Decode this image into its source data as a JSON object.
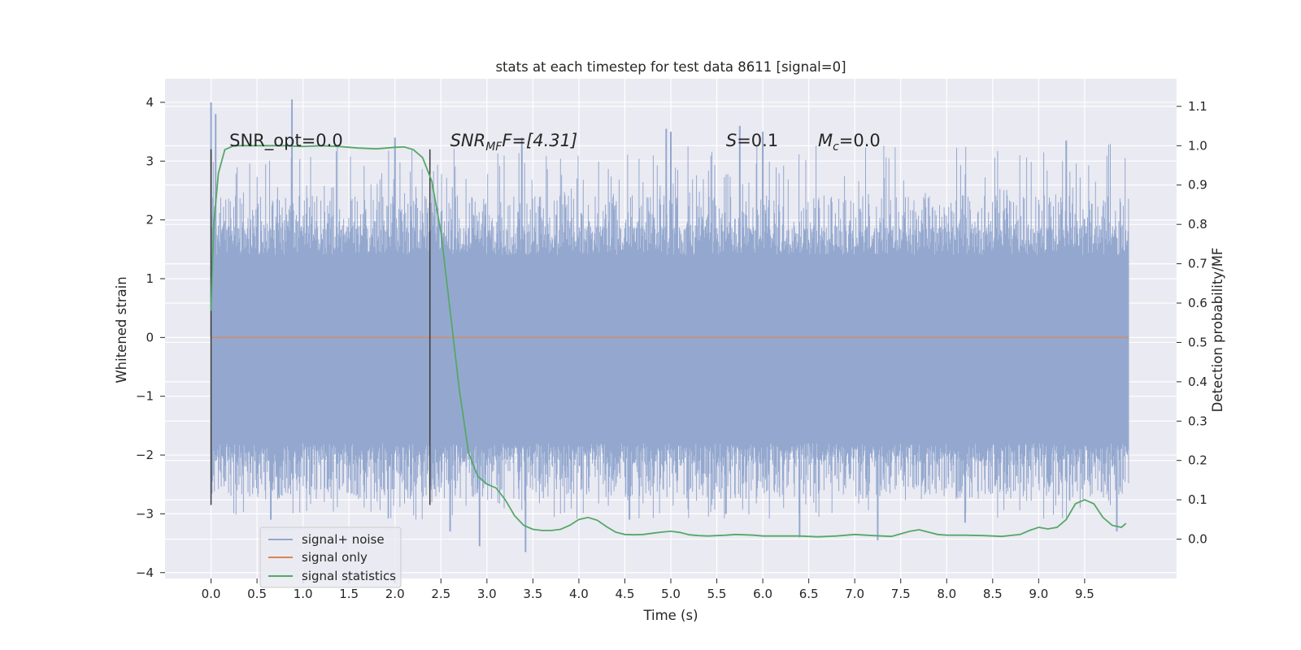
{
  "chart_data": {
    "type": "line",
    "title": "stats at each timestep for test data 8611 [signal=0]",
    "xlabel": "Time (s)",
    "ylabel_left": "Whitened strain",
    "ylabel_right": "Detection probability/MF",
    "xlim": [
      -0.5,
      10.5
    ],
    "ylim_left": [
      -4.1,
      4.4
    ],
    "ylim_right": [
      -0.1,
      1.17
    ],
    "x_ticks": [
      "0.0",
      "0.5",
      "1.0",
      "1.5",
      "2.0",
      "2.5",
      "3.0",
      "3.5",
      "4.0",
      "4.5",
      "5.0",
      "5.5",
      "6.0",
      "6.5",
      "7.0",
      "7.5",
      "8.0",
      "8.5",
      "9.0",
      "9.5"
    ],
    "y_left_ticks": [
      "−4",
      "−3",
      "−2",
      "−1",
      "0",
      "1",
      "2",
      "3",
      "4"
    ],
    "y_right_ticks": [
      "0.0",
      "0.1",
      "0.2",
      "0.3",
      "0.4",
      "0.5",
      "0.6",
      "0.7",
      "0.8",
      "0.9",
      "1.0",
      "1.1"
    ],
    "grid": true,
    "legend_position": "lower-left",
    "colors": {
      "background": "#eaeaf2",
      "grid": "#ffffff",
      "signal_noise": "#94a8cf",
      "signal_only": "#dd8452",
      "signal_statistics": "#55a868",
      "marker_lines": "#3a3a3a"
    },
    "series": [
      {
        "name": "signal+ noise",
        "axis": "left",
        "x_range": [
          0.0,
          9.98
        ],
        "core_band": [
          -1.8,
          1.4
        ],
        "typical_band": [
          -2.4,
          2.0
        ],
        "peaks": [
          {
            "x": 0.0,
            "y": 4.0
          },
          {
            "x": 0.05,
            "y": 3.8
          },
          {
            "x": 0.88,
            "y": 4.05
          },
          {
            "x": 2.0,
            "y": 3.4
          },
          {
            "x": 3.38,
            "y": 3.4
          },
          {
            "x": 4.95,
            "y": 3.55
          },
          {
            "x": 5.0,
            "y": 3.5
          },
          {
            "x": 5.75,
            "y": 3.6
          },
          {
            "x": 6.0,
            "y": 3.5
          },
          {
            "x": 9.3,
            "y": 3.35
          },
          {
            "x": 3.42,
            "y": -3.65
          },
          {
            "x": 2.92,
            "y": -3.55
          },
          {
            "x": 6.4,
            "y": -3.4
          },
          {
            "x": 7.25,
            "y": -3.45
          },
          {
            "x": 9.85,
            "y": -3.3
          },
          {
            "x": 0.65,
            "y": -3.1
          },
          {
            "x": 4.55,
            "y": -3.1
          },
          {
            "x": 8.2,
            "y": -3.15
          },
          {
            "x": 5.6,
            "y": -3.0
          },
          {
            "x": 2.6,
            "y": -3.3
          }
        ]
      },
      {
        "name": "signal only",
        "axis": "left",
        "x": [
          0.0,
          9.98
        ],
        "y": [
          0.0,
          0.0
        ]
      },
      {
        "name": "signal statistics",
        "axis": "right",
        "x": [
          0.0,
          0.03,
          0.08,
          0.15,
          0.25,
          0.4,
          0.6,
          0.8,
          1.0,
          1.2,
          1.4,
          1.6,
          1.8,
          2.0,
          2.1,
          2.2,
          2.3,
          2.4,
          2.5,
          2.6,
          2.7,
          2.8,
          2.9,
          3.0,
          3.1,
          3.2,
          3.3,
          3.4,
          3.5,
          3.6,
          3.7,
          3.8,
          3.9,
          4.0,
          4.1,
          4.2,
          4.3,
          4.4,
          4.5,
          4.6,
          4.7,
          4.8,
          4.9,
          5.0,
          5.1,
          5.2,
          5.3,
          5.4,
          5.5,
          5.6,
          5.7,
          5.8,
          5.9,
          6.0,
          6.2,
          6.4,
          6.6,
          6.8,
          7.0,
          7.2,
          7.4,
          7.6,
          7.7,
          7.8,
          7.9,
          8.0,
          8.2,
          8.4,
          8.6,
          8.8,
          8.9,
          9.0,
          9.1,
          9.2,
          9.3,
          9.4,
          9.5,
          9.6,
          9.7,
          9.8,
          9.9,
          9.95
        ],
        "y": [
          0.58,
          0.8,
          0.93,
          0.99,
          1.0,
          1.0,
          1.0,
          1.0,
          0.998,
          1.0,
          0.998,
          0.994,
          0.992,
          0.996,
          0.997,
          0.99,
          0.97,
          0.91,
          0.78,
          0.58,
          0.38,
          0.22,
          0.16,
          0.14,
          0.13,
          0.1,
          0.06,
          0.035,
          0.025,
          0.022,
          0.022,
          0.025,
          0.035,
          0.05,
          0.055,
          0.048,
          0.032,
          0.018,
          0.012,
          0.011,
          0.012,
          0.015,
          0.018,
          0.02,
          0.017,
          0.011,
          0.009,
          0.008,
          0.009,
          0.01,
          0.012,
          0.011,
          0.01,
          0.008,
          0.008,
          0.008,
          0.006,
          0.008,
          0.012,
          0.009,
          0.007,
          0.02,
          0.024,
          0.018,
          0.012,
          0.01,
          0.01,
          0.009,
          0.007,
          0.012,
          0.022,
          0.03,
          0.026,
          0.03,
          0.05,
          0.09,
          0.1,
          0.09,
          0.055,
          0.035,
          0.03,
          0.04
        ]
      }
    ],
    "vertical_markers": [
      {
        "x": 0.0,
        "y_from": -2.85,
        "y_to": 3.2
      },
      {
        "x": 2.38,
        "y_from": -2.85,
        "y_to": 3.2
      }
    ],
    "annotations": {
      "snr_opt": {
        "text": "SNR_opt=0.0",
        "x": 0.2,
        "y": 3.25
      },
      "snr_mf": {
        "main": "SNR",
        "sub": "MF",
        "tail": "F=[4.31]",
        "x": 2.6,
        "y": 3.25
      },
      "s": {
        "main": "S",
        "tail": "=0.1",
        "x": 5.6,
        "y": 3.25
      },
      "mc": {
        "main": "M",
        "sub": "c",
        "tail": "=0.0",
        "x": 6.6,
        "y": 3.25
      }
    }
  }
}
